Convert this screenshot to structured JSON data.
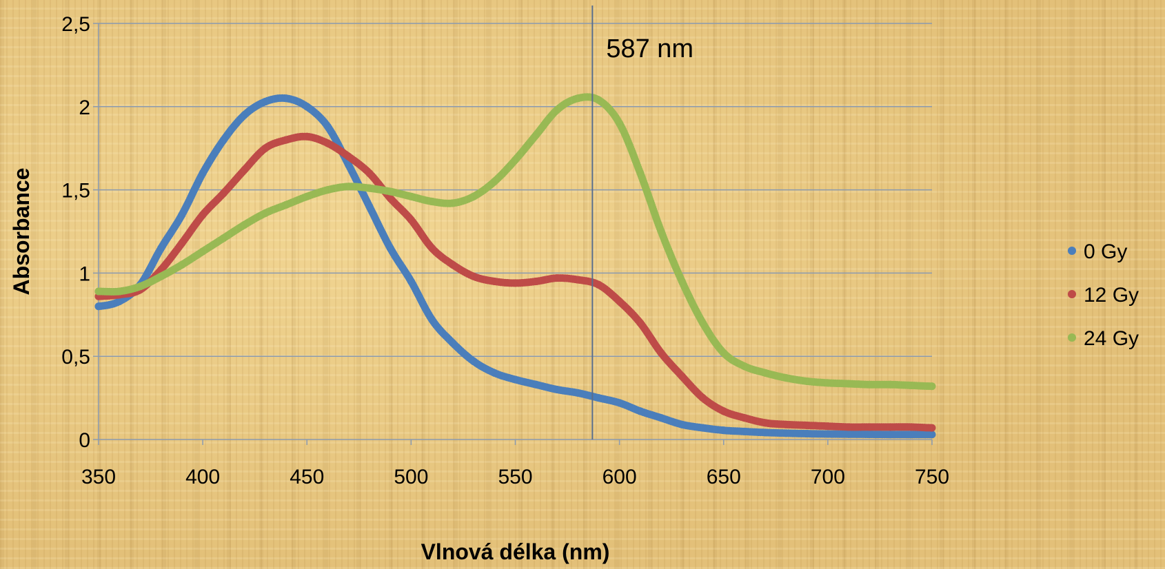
{
  "chart_data": {
    "type": "line",
    "title": "",
    "xlabel": "Vlnová délka (nm)",
    "ylabel": "Absorbance",
    "xlim": [
      350,
      750
    ],
    "ylim": [
      0,
      2.5
    ],
    "x_ticks": [
      350,
      400,
      450,
      500,
      550,
      600,
      650,
      700,
      750
    ],
    "x_tick_labels": [
      "350",
      "400",
      "450",
      "500",
      "550",
      "600",
      "650",
      "700",
      "750"
    ],
    "y_ticks": [
      0,
      0.5,
      1,
      1.5,
      2,
      2.5
    ],
    "y_tick_labels": [
      "0",
      "0,5",
      "1",
      "1,5",
      "2",
      "2,5"
    ],
    "grid": "horizontal",
    "legend_position": "right",
    "annotation": {
      "text": "587 nm",
      "x": 587
    },
    "x": [
      350,
      360,
      370,
      380,
      390,
      400,
      410,
      420,
      430,
      440,
      450,
      460,
      470,
      480,
      490,
      500,
      510,
      520,
      530,
      540,
      550,
      560,
      570,
      580,
      590,
      600,
      610,
      620,
      630,
      640,
      650,
      660,
      670,
      680,
      690,
      700,
      710,
      720,
      730,
      740,
      750
    ],
    "series": [
      {
        "name": "0 Gy",
        "color": "#4a7ebb",
        "values": [
          0.8,
          0.83,
          0.93,
          1.15,
          1.35,
          1.6,
          1.8,
          1.95,
          2.03,
          2.05,
          2.0,
          1.88,
          1.65,
          1.4,
          1.15,
          0.95,
          0.72,
          0.58,
          0.47,
          0.4,
          0.36,
          0.33,
          0.3,
          0.28,
          0.25,
          0.22,
          0.17,
          0.13,
          0.09,
          0.07,
          0.055,
          0.048,
          0.042,
          0.038,
          0.035,
          0.033,
          0.032,
          0.031,
          0.03,
          0.03,
          0.03
        ]
      },
      {
        "name": "12 Gy",
        "color": "#be4b48",
        "values": [
          0.86,
          0.87,
          0.9,
          1.02,
          1.18,
          1.35,
          1.48,
          1.62,
          1.75,
          1.8,
          1.82,
          1.78,
          1.7,
          1.6,
          1.45,
          1.32,
          1.15,
          1.05,
          0.98,
          0.95,
          0.94,
          0.95,
          0.97,
          0.96,
          0.93,
          0.83,
          0.7,
          0.52,
          0.38,
          0.25,
          0.17,
          0.13,
          0.1,
          0.09,
          0.085,
          0.08,
          0.075,
          0.075,
          0.075,
          0.075,
          0.07
        ]
      },
      {
        "name": "24 Gy",
        "color": "#98b954",
        "values": [
          0.89,
          0.89,
          0.92,
          0.98,
          1.05,
          1.13,
          1.21,
          1.29,
          1.36,
          1.41,
          1.46,
          1.5,
          1.52,
          1.51,
          1.49,
          1.46,
          1.43,
          1.42,
          1.46,
          1.55,
          1.68,
          1.83,
          1.98,
          2.05,
          2.04,
          1.9,
          1.6,
          1.25,
          0.95,
          0.7,
          0.52,
          0.44,
          0.4,
          0.37,
          0.35,
          0.34,
          0.335,
          0.33,
          0.33,
          0.325,
          0.32
        ]
      }
    ]
  }
}
